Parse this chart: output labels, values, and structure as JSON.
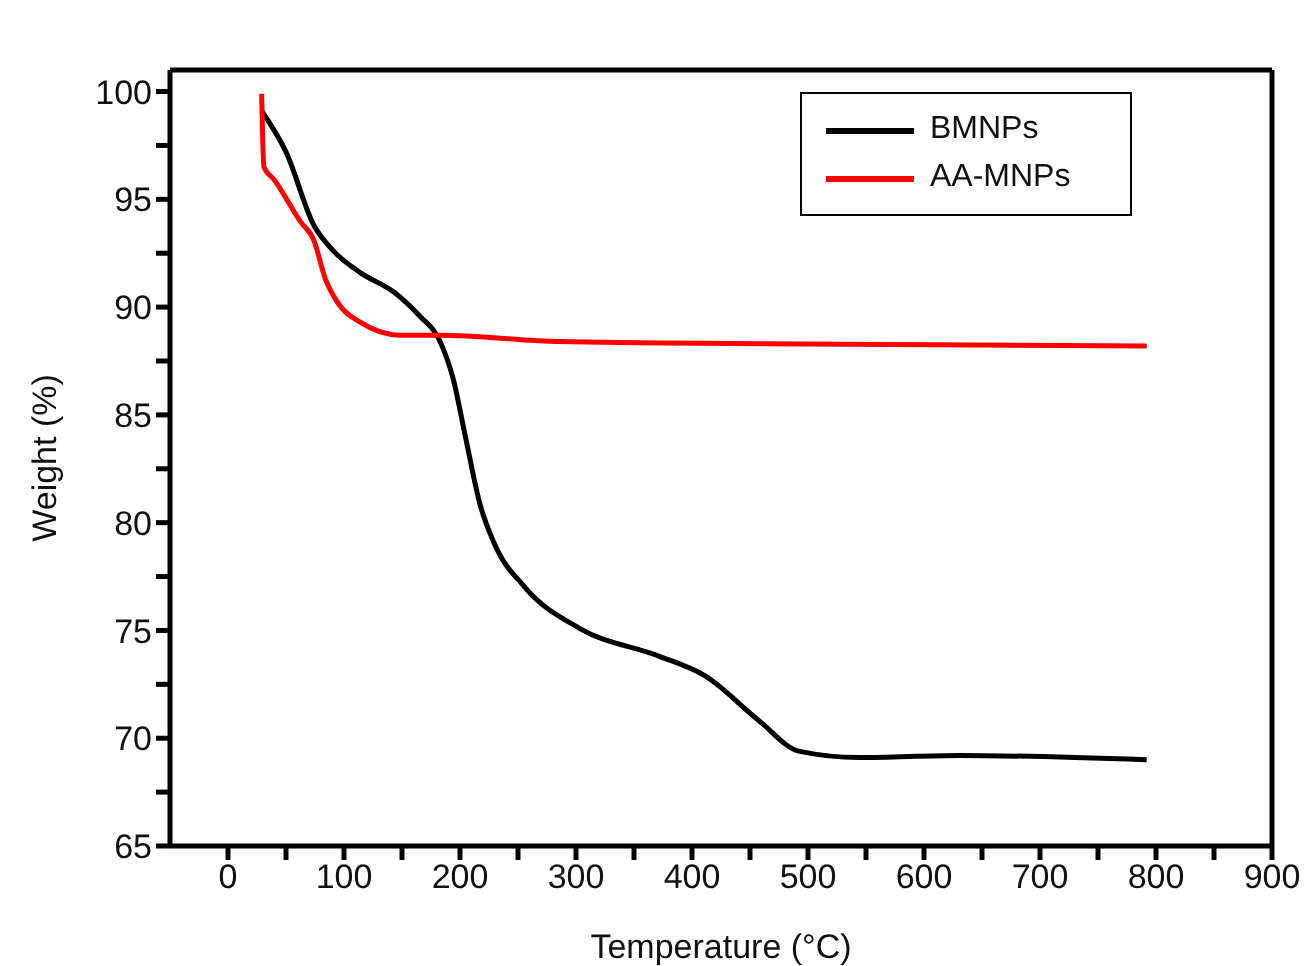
{
  "chart_data": {
    "type": "line",
    "xlabel": "Temperature (°C)",
    "ylabel": "Weight (%)",
    "xlim": [
      -50,
      900
    ],
    "xticks": [
      0,
      {
        "value": 50,
        "label": null
      },
      100,
      {
        "value": 150,
        "label": null
      },
      200,
      {
        "value": 250,
        "label": null
      },
      300,
      {
        "value": 350,
        "label": null
      },
      400,
      {
        "value": 450,
        "label": null
      },
      500,
      {
        "value": 550,
        "label": null
      },
      600,
      {
        "value": 650,
        "label": null
      },
      700,
      {
        "value": 750,
        "label": null
      },
      800,
      {
        "value": 850,
        "label": null
      },
      900
    ],
    "ylim": [
      65,
      101
    ],
    "yticks": [
      65,
      {
        "value": 67.5,
        "label": null
      },
      70,
      {
        "value": 72.5,
        "label": null
      },
      75,
      {
        "value": 77.5,
        "label": null
      },
      80,
      {
        "value": 82.5,
        "label": null
      },
      85,
      {
        "value": 87.5,
        "label": null
      },
      90,
      {
        "value": 92.5,
        "label": null
      },
      95,
      {
        "value": 97.5,
        "label": null
      },
      100
    ],
    "legend": "top right",
    "marker": "none",
    "line_style": "solid",
    "series": [
      {
        "name": "BMNPs",
        "color": "#000000",
        "x": [
          29,
          50,
          74,
          91,
          114,
          143,
          165,
          182,
          194,
          205,
          217,
          229,
          256,
          303,
          372,
          411,
          458,
          492,
          544,
          630,
          792
        ],
        "values": [
          99.1,
          97.2,
          93.8,
          92.6,
          91.6,
          90.7,
          89.6,
          88.5,
          86.7,
          83.9,
          80.9,
          79.1,
          77,
          75.1,
          73.8,
          72.9,
          70.8,
          69.4,
          69.1,
          69.2,
          69
        ]
      },
      {
        "name": "AA-MNPs",
        "color": "#ff0000",
        "x": [
          29,
          31,
          40,
          62,
          74,
          84,
          96,
          114,
          148,
          182,
          286,
          458,
          792
        ],
        "values": [
          99.9,
          96.5,
          95.9,
          94,
          93.1,
          91.3,
          90.1,
          89.3,
          88.7,
          88.7,
          88.4,
          88.3,
          88.2
        ]
      }
    ]
  }
}
